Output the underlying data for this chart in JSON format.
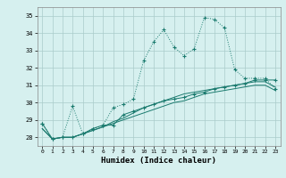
{
  "xlabel": "Humidex (Indice chaleur)",
  "background_color": "#d6f0ef",
  "grid_color": "#aaccca",
  "line_color": "#1a7a6e",
  "xlim": [
    -0.5,
    23.5
  ],
  "ylim": [
    27.5,
    35.5
  ],
  "yticks": [
    28,
    29,
    30,
    31,
    32,
    33,
    34,
    35
  ],
  "xticks": [
    0,
    1,
    2,
    3,
    4,
    5,
    6,
    7,
    8,
    9,
    10,
    11,
    12,
    13,
    14,
    15,
    16,
    17,
    18,
    19,
    20,
    21,
    22,
    23
  ],
  "series1": [
    28.8,
    27.9,
    28.0,
    29.8,
    28.2,
    28.5,
    28.7,
    29.7,
    29.9,
    30.2,
    32.4,
    33.5,
    34.2,
    33.2,
    32.7,
    33.1,
    34.9,
    34.8,
    34.3,
    31.9,
    31.4,
    31.4,
    31.4,
    30.8
  ],
  "series2": [
    28.8,
    27.9,
    28.0,
    28.0,
    28.2,
    28.5,
    28.7,
    28.7,
    29.3,
    29.5,
    29.7,
    29.9,
    30.1,
    30.2,
    30.3,
    30.5,
    30.6,
    30.8,
    30.9,
    31.0,
    31.1,
    31.3,
    31.3,
    31.3
  ],
  "series3": [
    28.5,
    27.9,
    28.0,
    28.0,
    28.2,
    28.4,
    28.6,
    28.8,
    29.0,
    29.2,
    29.4,
    29.6,
    29.8,
    30.0,
    30.1,
    30.3,
    30.5,
    30.6,
    30.7,
    30.8,
    30.9,
    31.0,
    31.0,
    30.7
  ],
  "series4": [
    28.5,
    27.9,
    28.0,
    28.0,
    28.2,
    28.4,
    28.6,
    28.9,
    29.1,
    29.4,
    29.7,
    29.9,
    30.1,
    30.3,
    30.5,
    30.6,
    30.7,
    30.8,
    30.9,
    31.0,
    31.1,
    31.2,
    31.2,
    30.9
  ]
}
